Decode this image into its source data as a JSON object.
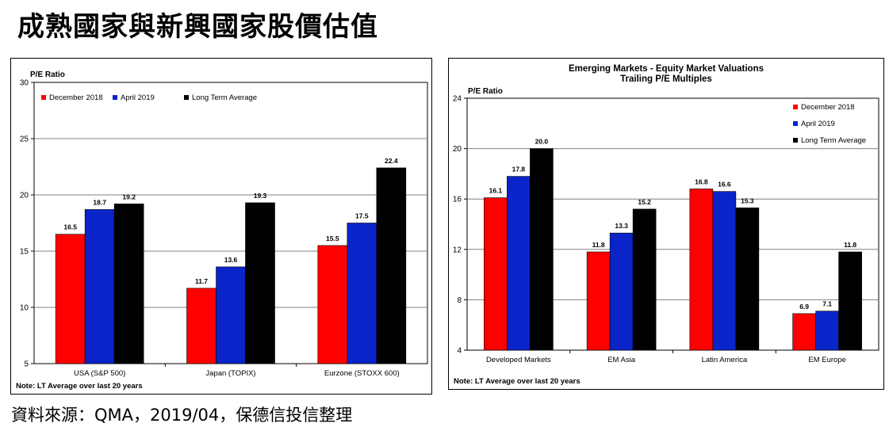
{
  "page": {
    "title": "成熟國家與新興國家股價估值",
    "source": "資料來源：QMA，2019/04，保德信投信整理"
  },
  "chart_data": [
    {
      "type": "bar",
      "ylabel": "P/E Ratio",
      "ylim": [
        5,
        30
      ],
      "yticks": [
        5,
        10,
        15,
        20,
        25,
        30
      ],
      "categories": [
        "USA (S&P 500)",
        "Japan (TOPIX)",
        "Eurzone (STOXX 600)"
      ],
      "series": [
        {
          "name": "December 2018",
          "color": "#ff0000",
          "values": [
            16.5,
            11.7,
            15.5
          ]
        },
        {
          "name": "April 2019",
          "color": "#0b24c9",
          "values": [
            18.7,
            13.6,
            17.5
          ]
        },
        {
          "name": "Long Term Average",
          "color": "#000000",
          "values": [
            19.2,
            19.3,
            22.4
          ]
        }
      ],
      "data_labels": [
        [
          "16.5",
          "11.7",
          "15.5"
        ],
        [
          "18.7",
          "13.6",
          "17.5"
        ],
        [
          "19.2",
          "19.3",
          "22.4"
        ]
      ],
      "legend_position": "top-left",
      "grid": true,
      "note": "Note: LT Average over last 20 years"
    },
    {
      "type": "bar",
      "title": "Emerging Markets - Equity Market Valuations",
      "subtitle": "Trailing P/E Multiples",
      "ylabel": "P/E Ratio",
      "ylim": [
        4,
        24
      ],
      "yticks": [
        4,
        8,
        12,
        16,
        20,
        24
      ],
      "categories": [
        "Developed Markets",
        "EM Asia",
        "Latin America",
        "EM Europe"
      ],
      "series": [
        {
          "name": "December 2018",
          "color": "#ff0000",
          "values": [
            16.1,
            11.8,
            16.8,
            6.9
          ]
        },
        {
          "name": "April 2019",
          "color": "#0b24c9",
          "values": [
            17.8,
            13.3,
            16.6,
            7.1
          ]
        },
        {
          "name": "Long Term Average",
          "color": "#000000",
          "values": [
            20.0,
            15.2,
            15.3,
            11.8
          ]
        }
      ],
      "data_labels": [
        [
          "16.1",
          "11.8",
          "16.8",
          "6.9"
        ],
        [
          "17.8",
          "13.3",
          "16.6",
          "7.1"
        ],
        [
          "20.0",
          "15.2",
          "15.3",
          "11.8"
        ]
      ],
      "legend_position": "top-right",
      "grid": true,
      "note": "Note: LT Average over last 20 years"
    }
  ]
}
